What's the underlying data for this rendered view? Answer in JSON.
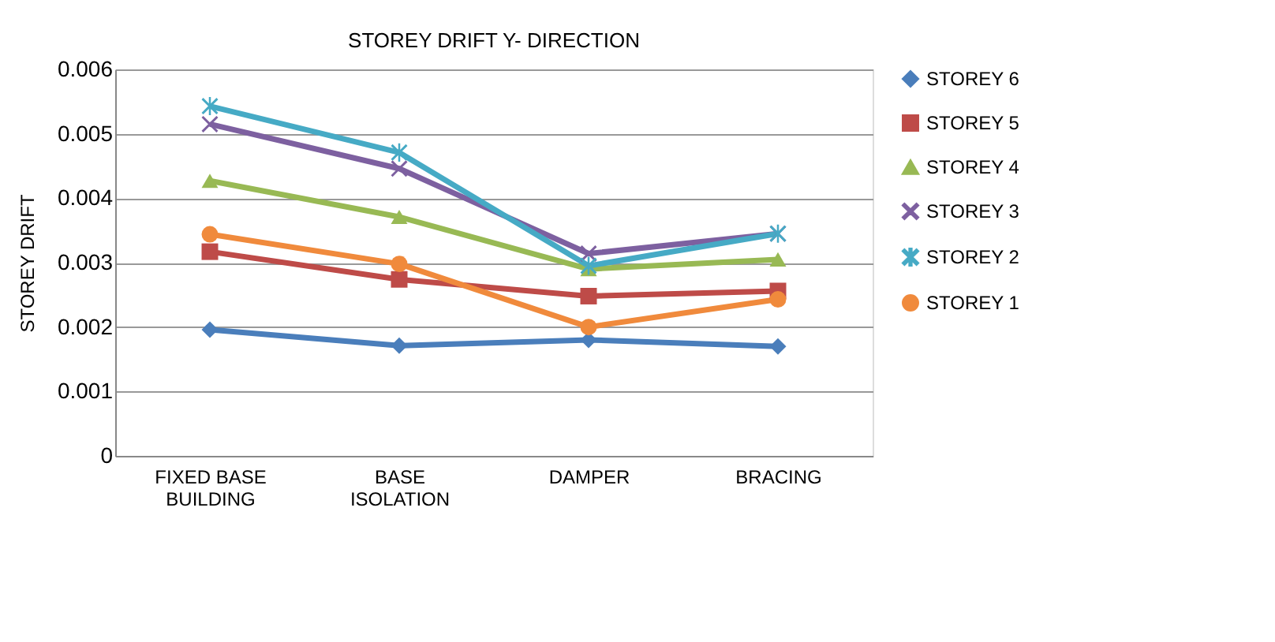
{
  "chart_data": {
    "type": "line",
    "title": "STOREY DRIFT Y- DIRECTION",
    "ylabel": "STOREY DRIFT",
    "categories": [
      "FIXED BASE BUILDING",
      "BASE ISOLATION",
      "DAMPER",
      "BRACING"
    ],
    "ylim": [
      0,
      0.006
    ],
    "yticks": [
      0,
      0.001,
      0.002,
      0.003,
      0.004,
      0.005,
      0.006
    ],
    "grid": "y",
    "legend": "right",
    "line_style": "solid",
    "series": [
      {
        "name": "STOREY 6",
        "color": "#4a7ebb",
        "marker": "diamond",
        "values": [
          0.00196,
          0.00171,
          0.0018,
          0.0017
        ]
      },
      {
        "name": "STOREY 5",
        "color": "#be4b48",
        "marker": "square",
        "values": [
          0.00317,
          0.00274,
          0.00248,
          0.00256
        ]
      },
      {
        "name": "STOREY 4",
        "color": "#98b954",
        "marker": "triangle",
        "values": [
          0.00427,
          0.00371,
          0.0029,
          0.00305
        ]
      },
      {
        "name": "STOREY 3",
        "color": "#7d60a0",
        "marker": "cross",
        "values": [
          0.00515,
          0.00446,
          0.00314,
          0.00345
        ]
      },
      {
        "name": "STOREY 2",
        "color": "#46aac5",
        "marker": "star",
        "values": [
          0.00543,
          0.00471,
          0.00295,
          0.00345
        ]
      },
      {
        "name": "STOREY 1",
        "color": "#f08a3c",
        "marker": "circle",
        "values": [
          0.00344,
          0.00298,
          0.002,
          0.00243
        ]
      }
    ]
  }
}
